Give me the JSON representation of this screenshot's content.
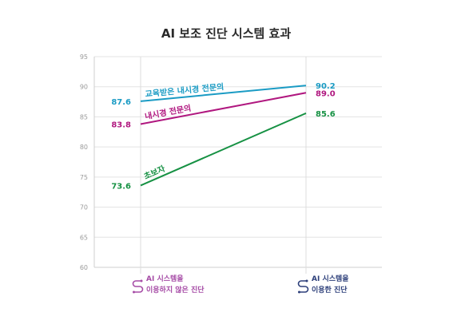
{
  "chart_data": {
    "type": "line",
    "title": "AI 보조 진단 시스템 효과",
    "categories": [
      {
        "line1": "AI 시스템을",
        "line2": "이용하지 않은 진단",
        "color": "#a64ca6",
        "icon": "route-icon"
      },
      {
        "line1": "AI 시스템을",
        "line2": "이용한 진단",
        "color": "#2d3f7a",
        "icon": "route-icon"
      }
    ],
    "ylim": [
      60,
      95
    ],
    "yticks": [
      60,
      65,
      70,
      75,
      80,
      85,
      90,
      95
    ],
    "grid": true,
    "series": [
      {
        "name": "교육받은 내시경 전문의",
        "values": [
          87.6,
          90.2
        ],
        "labels": [
          "87.6",
          "90.2"
        ],
        "color": "#1a9bc4"
      },
      {
        "name": "내시경 전문의",
        "values": [
          83.8,
          89.0
        ],
        "labels": [
          "83.8",
          "89.0"
        ],
        "color": "#b0177f"
      },
      {
        "name": "초보자",
        "values": [
          73.6,
          85.6
        ],
        "labels": [
          "73.6",
          "85.6"
        ],
        "color": "#169143"
      }
    ]
  }
}
